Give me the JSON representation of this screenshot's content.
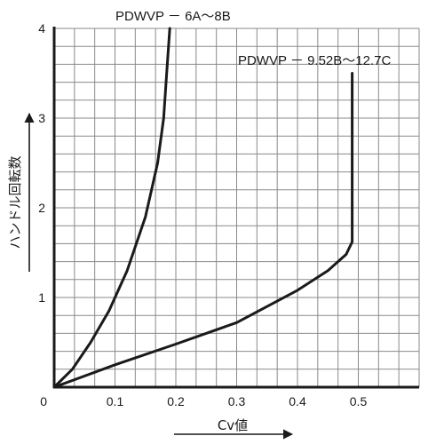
{
  "chart_data": {
    "type": "line",
    "xlabel": "Cv値",
    "ylabel": "ハンドル回転数",
    "xlim": [
      0,
      0.6
    ],
    "ylim": [
      0,
      4
    ],
    "x_ticks": [
      "0",
      "0.1",
      "0.2",
      "0.3",
      "0.4",
      "0.5"
    ],
    "y_ticks": [
      "0",
      "1",
      "2",
      "3",
      "4"
    ],
    "grid": true,
    "series": [
      {
        "name": "PDWVP － 6A～8B",
        "points": [
          [
            0,
            0
          ],
          [
            0.03,
            0.2
          ],
          [
            0.06,
            0.5
          ],
          [
            0.09,
            0.85
          ],
          [
            0.12,
            1.3
          ],
          [
            0.15,
            1.9
          ],
          [
            0.17,
            2.5
          ],
          [
            0.18,
            3.0
          ],
          [
            0.185,
            3.5
          ],
          [
            0.19,
            4.0
          ]
        ]
      },
      {
        "name": "PDWVP － 9.52B～12.7C",
        "points": [
          [
            0,
            0
          ],
          [
            0.1,
            0.25
          ],
          [
            0.2,
            0.48
          ],
          [
            0.3,
            0.72
          ],
          [
            0.4,
            1.08
          ],
          [
            0.45,
            1.3
          ],
          [
            0.48,
            1.48
          ],
          [
            0.49,
            1.62
          ],
          [
            0.49,
            3.5
          ]
        ]
      }
    ]
  }
}
